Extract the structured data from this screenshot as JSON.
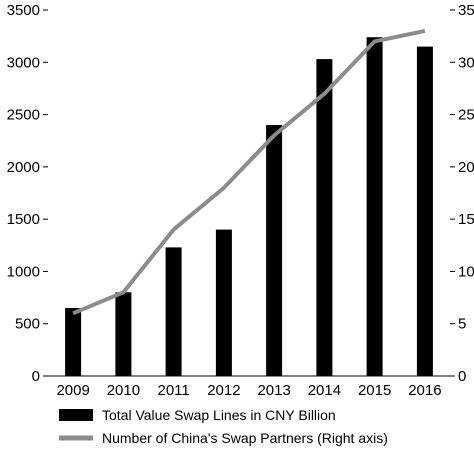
{
  "chart_data": {
    "type": "bar",
    "title": "",
    "xlabel": "",
    "ylabel": "",
    "categories": [
      "2009",
      "2010",
      "2011",
      "2012",
      "2013",
      "2014",
      "2015",
      "2016"
    ],
    "series": [
      {
        "name": "Total Value Swap Lines in CNY Billion",
        "type": "bar",
        "axis": "left",
        "color": "#000000",
        "values": [
          650,
          800,
          1230,
          1400,
          2400,
          3030,
          3240,
          3150
        ]
      },
      {
        "name": "Number of China's Swap Partners (Right axis)",
        "type": "line",
        "axis": "right",
        "color": "#8c8c8c",
        "values": [
          6,
          8,
          14,
          18,
          23,
          27,
          32,
          33
        ]
      }
    ],
    "ylim": [
      0,
      3500
    ],
    "yticks": [
      "0",
      "500",
      "1000",
      "1500",
      "2000",
      "2500",
      "3000",
      "3500"
    ],
    "y2lim": [
      0,
      35
    ],
    "y2ticks": [
      "0",
      "5",
      "10",
      "15",
      "20",
      "25",
      "30",
      "35"
    ],
    "grid": false,
    "legend_position": "bottom"
  }
}
